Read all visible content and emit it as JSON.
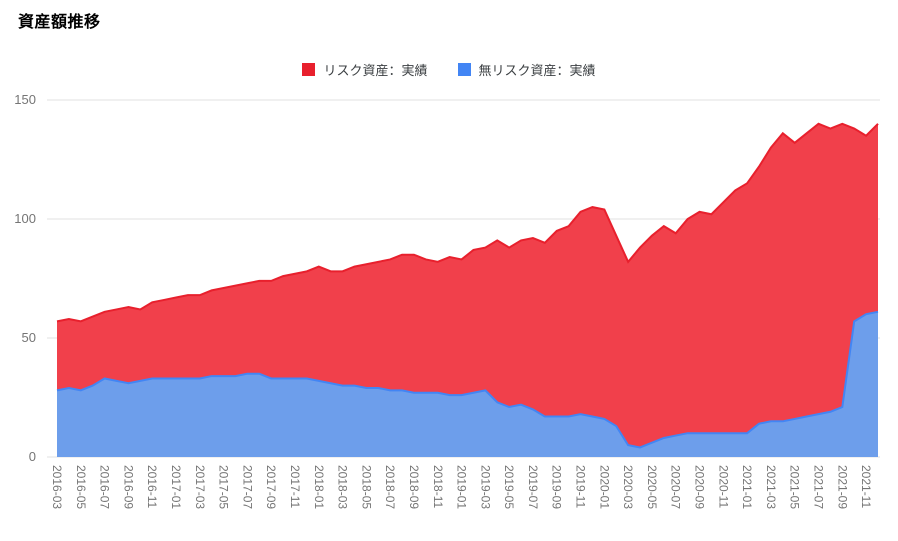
{
  "title": "資産額推移",
  "chart_data": {
    "type": "area",
    "stacked": true,
    "title": "資産額推移",
    "legend_position": "top-center",
    "grid": "horizontal",
    "grid_color": "#e0e0e0",
    "tick_color": "#757575",
    "ylim": [
      0,
      150
    ],
    "yticks": [
      0,
      50,
      100,
      150
    ],
    "x_tick_every": 2,
    "x": [
      "2016-03",
      "2016-04",
      "2016-05",
      "2016-06",
      "2016-07",
      "2016-08",
      "2016-09",
      "2016-10",
      "2016-11",
      "2016-12",
      "2017-01",
      "2017-02",
      "2017-03",
      "2017-04",
      "2017-05",
      "2017-06",
      "2017-07",
      "2017-08",
      "2017-09",
      "2017-10",
      "2017-11",
      "2017-12",
      "2018-01",
      "2018-02",
      "2018-03",
      "2018-04",
      "2018-05",
      "2018-06",
      "2018-07",
      "2018-08",
      "2018-09",
      "2018-10",
      "2018-11",
      "2018-12",
      "2019-01",
      "2019-02",
      "2019-03",
      "2019-04",
      "2019-05",
      "2019-06",
      "2019-07",
      "2019-08",
      "2019-09",
      "2019-10",
      "2019-11",
      "2019-12",
      "2020-01",
      "2020-02",
      "2020-03",
      "2020-04",
      "2020-05",
      "2020-06",
      "2020-07",
      "2020-08",
      "2020-09",
      "2020-10",
      "2020-11",
      "2020-12",
      "2021-01",
      "2021-02",
      "2021-03",
      "2021-04",
      "2021-05",
      "2021-06",
      "2021-07",
      "2021-08",
      "2021-09",
      "2021-10",
      "2021-11",
      "2021-12"
    ],
    "x_tick_labels": [
      "2016-03",
      "2016-05",
      "2016-07",
      "2016-09",
      "2016-11",
      "2017-01",
      "2017-03",
      "2017-05",
      "2017-07",
      "2017-09",
      "2017-11",
      "2018-01",
      "2018-03",
      "2018-05",
      "2018-07",
      "2018-09",
      "2018-11",
      "2019-01",
      "2019-03",
      "2019-05",
      "2019-07",
      "2019-09",
      "2019-11",
      "2020-01",
      "2020-03",
      "2020-05",
      "2020-07",
      "2020-09",
      "2020-11",
      "2021-01",
      "2021-03",
      "2021-05",
      "2021-07",
      "2021-09",
      "2021-11"
    ],
    "stack_order_bottom_to_top": [
      "無リスク資産：実績",
      "リスク資産：実績"
    ],
    "series": [
      {
        "name": "リスク資産：実績",
        "color": "#e8202d",
        "fill": "#f1404b",
        "values": [
          29,
          29,
          29,
          29,
          28,
          30,
          32,
          30,
          32,
          33,
          34,
          35,
          35,
          36,
          37,
          38,
          38,
          39,
          41,
          43,
          44,
          45,
          48,
          47,
          48,
          50,
          52,
          53,
          55,
          57,
          58,
          56,
          55,
          58,
          57,
          60,
          60,
          68,
          67,
          69,
          72,
          73,
          78,
          80,
          85,
          88,
          88,
          80,
          77,
          84,
          87,
          89,
          85,
          90,
          93,
          92,
          97,
          102,
          105,
          108,
          115,
          121,
          116,
          119,
          122,
          119,
          119,
          81,
          75,
          79
        ]
      },
      {
        "name": "無リスク資産：実績",
        "color": "#4285f4",
        "fill": "#6d9eeb",
        "values": [
          28,
          29,
          28,
          30,
          33,
          32,
          31,
          32,
          33,
          33,
          33,
          33,
          33,
          34,
          34,
          34,
          35,
          35,
          33,
          33,
          33,
          33,
          32,
          31,
          30,
          30,
          29,
          29,
          28,
          28,
          27,
          27,
          27,
          26,
          26,
          27,
          28,
          23,
          21,
          22,
          20,
          17,
          17,
          17,
          18,
          17,
          16,
          13,
          5,
          4,
          6,
          8,
          9,
          10,
          10,
          10,
          10,
          10,
          10,
          14,
          15,
          15,
          16,
          17,
          18,
          19,
          21,
          57,
          60,
          61
        ]
      }
    ]
  }
}
